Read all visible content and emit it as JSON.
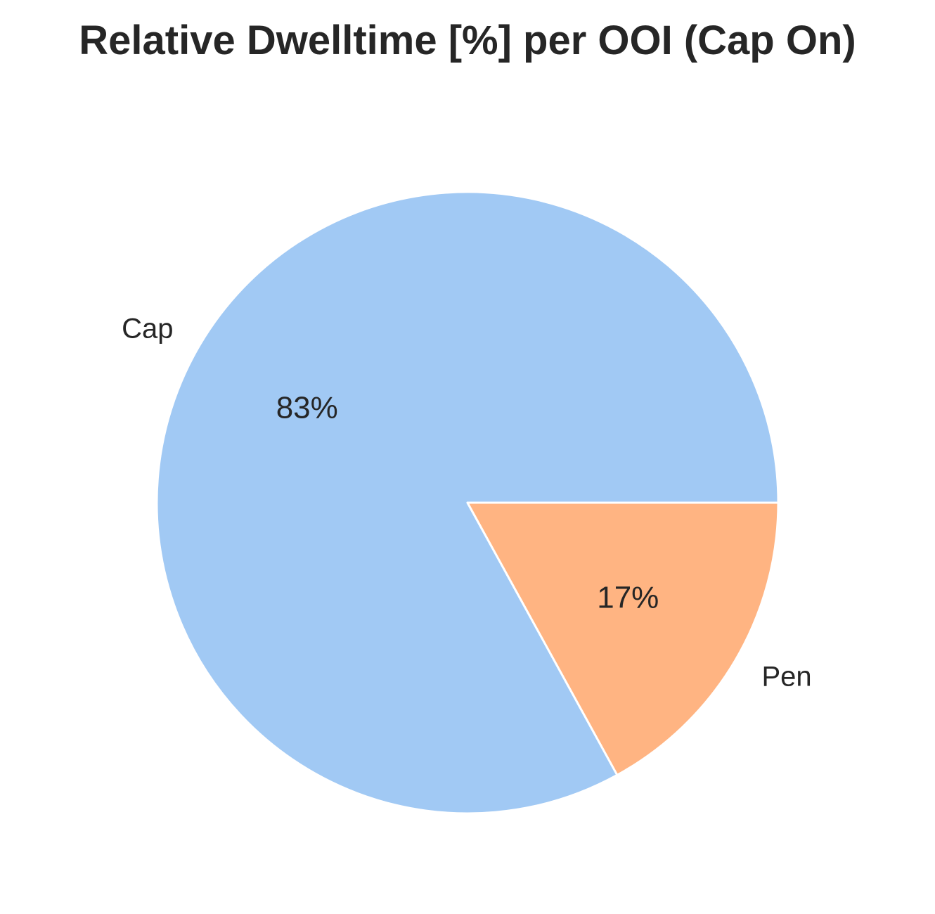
{
  "chart_data": {
    "type": "pie",
    "title": "Relative Dwelltime [%] per OOI (Cap On)",
    "categories": [
      "Cap",
      "Pen"
    ],
    "values": [
      83,
      17
    ],
    "percent_labels": [
      "83%",
      "17%"
    ],
    "colors": [
      "#a1c9f4",
      "#ffb482"
    ],
    "start_angle_deg": 0,
    "direction": "counterclockwise"
  }
}
